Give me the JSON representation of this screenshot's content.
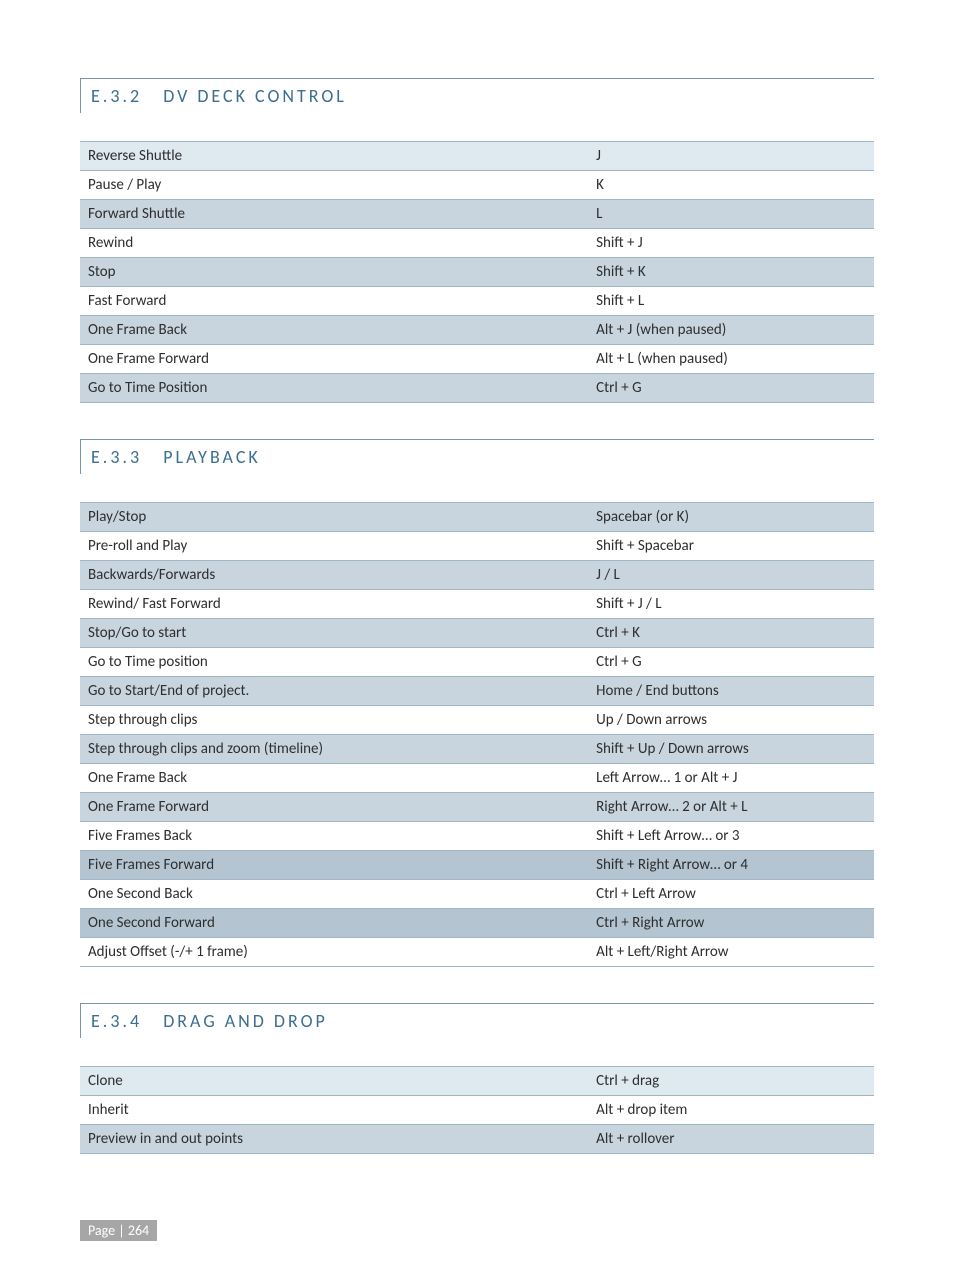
{
  "sections": [
    {
      "number": "E.3.2",
      "title": "DV DECK CONTROL",
      "rows": [
        {
          "label": "Reverse Shuttle",
          "shortcut": "J",
          "shade": "shade-light"
        },
        {
          "label": "Pause / Play",
          "shortcut": "K",
          "shade": ""
        },
        {
          "label": "Forward Shuttle",
          "shortcut": "L",
          "shade": "shade-medium"
        },
        {
          "label": "Rewind",
          "shortcut": "Shift + J",
          "shade": ""
        },
        {
          "label": "Stop",
          "shortcut": "Shift + K",
          "shade": "shade-medium"
        },
        {
          "label": "Fast Forward",
          "shortcut": "Shift + L",
          "shade": ""
        },
        {
          "label": "One Frame Back",
          "shortcut": "Alt + J (when paused)",
          "shade": "shade-medium"
        },
        {
          "label": "One Frame Forward",
          "shortcut": "Alt + L (when paused)",
          "shade": ""
        },
        {
          "label": "Go to Time Position",
          "shortcut": "Ctrl + G",
          "shade": "shade-medium"
        }
      ]
    },
    {
      "number": "E.3.3",
      "title": "PLAYBACK",
      "rows": [
        {
          "label": "Play/Stop",
          "shortcut": "Spacebar (or K)",
          "shade": "shade-medium"
        },
        {
          "label": "Pre-roll and Play",
          "shortcut": "Shift + Spacebar",
          "shade": ""
        },
        {
          "label": "Backwards/Forwards",
          "shortcut": "J / L",
          "shade": "shade-medium"
        },
        {
          "label": "Rewind/ Fast Forward",
          "shortcut": "Shift + J / L",
          "shade": ""
        },
        {
          "label": "Stop/Go to start",
          "shortcut": "Ctrl + K",
          "shade": "shade-medium"
        },
        {
          "label": "Go to Time position",
          "shortcut": "Ctrl + G",
          "shade": ""
        },
        {
          "label": "Go to Start/End of project.",
          "shortcut": "Home / End buttons",
          "shade": "shade-medium"
        },
        {
          "label": "Step through clips",
          "shortcut": "Up / Down arrows",
          "shade": ""
        },
        {
          "label": "Step through clips and zoom (timeline)",
          "shortcut": "Shift + Up / Down arrows",
          "shade": "shade-medium"
        },
        {
          "label": "One Frame Back",
          "shortcut": "Left Arrow… 1 or Alt + J",
          "shade": ""
        },
        {
          "label": "One Frame Forward",
          "shortcut": "Right Arrow… 2 or Alt + L",
          "shade": "shade-medium"
        },
        {
          "label": "Five Frames Back",
          "shortcut": "Shift + Left Arrow… or 3",
          "shade": ""
        },
        {
          "label": "Five Frames Forward",
          "shortcut": "Shift + Right Arrow… or 4",
          "shade": "shade-dark"
        },
        {
          "label": "One Second Back",
          "shortcut": "Ctrl + Left Arrow",
          "shade": ""
        },
        {
          "label": "One Second Forward",
          "shortcut": "Ctrl + Right Arrow",
          "shade": "shade-dark"
        },
        {
          "label": "Adjust Offset (-/+ 1 frame)",
          "shortcut": "Alt + Left/Right Arrow",
          "shade": ""
        }
      ]
    },
    {
      "number": "E.3.4",
      "title": "DRAG AND DROP",
      "rows": [
        {
          "label": "Clone",
          "shortcut": "Ctrl + drag",
          "shade": "shade-light"
        },
        {
          "label": "Inherit",
          "shortcut": "Alt + drop item",
          "shade": ""
        },
        {
          "label": "Preview in and out points",
          "shortcut": "Alt + rollover",
          "shade": "shade-medium"
        }
      ]
    }
  ],
  "footer": "Page | 264"
}
